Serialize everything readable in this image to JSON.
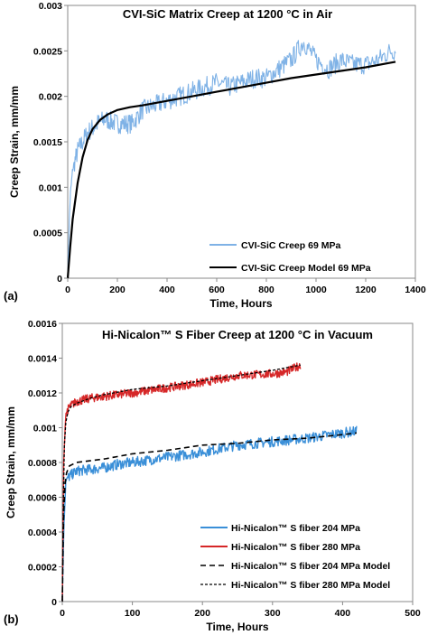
{
  "chart_data": [
    {
      "panel_label": "(a)",
      "type": "line",
      "title": "CVI-SiC Matrix Creep at 1200 °C in Air",
      "xlabel": "Time, Hours",
      "ylabel": "Creep Strain, mm/mm",
      "xlim": [
        0,
        1400
      ],
      "ylim": [
        0,
        0.003
      ],
      "x_ticks": [
        "0",
        "200",
        "400",
        "600",
        "800",
        "1000",
        "1200",
        "1400"
      ],
      "y_ticks": [
        "0",
        "0.0005",
        "0.001",
        "0.0015",
        "0.002",
        "0.0025",
        "0.003"
      ],
      "grid": false,
      "legend_position": "bottom-right",
      "colors": {
        "data": "#7fb2e6",
        "model": "#000000"
      },
      "series": [
        {
          "name": "CVI-SiC Creep 69 MPa",
          "style": "noisy-data",
          "x": [
            0,
            5,
            10,
            20,
            30,
            40,
            60,
            80,
            100,
            120,
            150,
            180,
            200,
            230,
            260,
            300,
            350,
            400,
            450,
            500,
            550,
            600,
            650,
            700,
            750,
            800,
            850,
            900,
            950,
            1000,
            1050,
            1100,
            1150,
            1200,
            1250,
            1300,
            1320
          ],
          "y": [
            0,
            0.0005,
            0.0009,
            0.0012,
            0.0013,
            0.0014,
            0.0015,
            0.0016,
            0.00165,
            0.0017,
            0.00175,
            0.00172,
            0.0017,
            0.0017,
            0.0017,
            0.00185,
            0.0019,
            0.00195,
            0.002,
            0.00205,
            0.0021,
            0.00215,
            0.0021,
            0.00215,
            0.0022,
            0.0022,
            0.0023,
            0.0024,
            0.0026,
            0.0024,
            0.0023,
            0.0024,
            0.00235,
            0.00235,
            0.0024,
            0.0025,
            0.0025
          ]
        },
        {
          "name": "CVI-SiC Creep Model 69 MPa",
          "style": "solid",
          "x": [
            0,
            10,
            20,
            40,
            60,
            80,
            100,
            130,
            160,
            200,
            250,
            300,
            400,
            500,
            600,
            700,
            800,
            900,
            1000,
            1100,
            1200,
            1300,
            1320
          ],
          "y": [
            0,
            0.00035,
            0.00065,
            0.00105,
            0.00133,
            0.00152,
            0.00164,
            0.00174,
            0.0018,
            0.00185,
            0.00188,
            0.0019,
            0.00195,
            0.002,
            0.00205,
            0.0021,
            0.00215,
            0.0022,
            0.00224,
            0.00228,
            0.00232,
            0.00237,
            0.00238
          ]
        }
      ]
    },
    {
      "panel_label": "(b)",
      "type": "line",
      "title": "Hi-Nicalon™ S Fiber Creep at 1200 °C in Vacuum",
      "xlabel": "Time, Hours",
      "ylabel": "Creep Strain, mm/mm",
      "xlim": [
        0,
        500
      ],
      "ylim": [
        0,
        0.0016
      ],
      "x_ticks": [
        "0",
        "100",
        "200",
        "300",
        "400",
        "500"
      ],
      "y_ticks": [
        "0",
        "0.0002",
        "0.0004",
        "0.0006",
        "0.0008",
        "0.001",
        "0.0012",
        "0.0014",
        "0.0016"
      ],
      "grid": false,
      "legend_position": "bottom-right",
      "colors": {
        "s204": "#3a8fd8",
        "s280": "#d62728",
        "model": "#000000"
      },
      "series": [
        {
          "name": "Hi-Nicalon™ S fiber 204 MPa",
          "style": "noisy-data",
          "x": [
            0,
            2,
            5,
            10,
            20,
            40,
            60,
            80,
            100,
            150,
            200,
            250,
            300,
            350,
            400,
            420
          ],
          "y": [
            0,
            0.0004,
            0.0007,
            0.00072,
            0.00075,
            0.00076,
            0.00077,
            0.00079,
            0.0008,
            0.00083,
            0.00086,
            0.0009,
            0.00092,
            0.00094,
            0.00097,
            0.00098
          ]
        },
        {
          "name": "Hi-Nicalon™ S fiber 280 MPa",
          "style": "noisy-data",
          "x": [
            0,
            2,
            5,
            10,
            20,
            40,
            60,
            80,
            100,
            150,
            200,
            250,
            300,
            320,
            340
          ],
          "y": [
            0,
            0.0008,
            0.00108,
            0.00112,
            0.00115,
            0.00117,
            0.00118,
            0.00119,
            0.0012,
            0.00123,
            0.00126,
            0.0013,
            0.00131,
            0.00132,
            0.00136
          ]
        },
        {
          "name": "Hi-Nicalon™ S fiber 204 MPa Model",
          "style": "long-dash",
          "x": [
            0,
            1,
            2,
            4,
            6,
            10,
            20,
            40,
            60,
            100,
            150,
            200,
            250,
            300,
            350,
            400,
            420
          ],
          "y": [
            0,
            0.0003,
            0.00052,
            0.00068,
            0.00074,
            0.00078,
            0.0008,
            0.00081,
            0.00082,
            0.00085,
            0.00087,
            0.0009,
            0.00091,
            0.00093,
            0.00094,
            0.00096,
            0.00097
          ]
        },
        {
          "name": "Hi-Nicalon™ S fiber 280 MPa Model",
          "style": "short-dash",
          "x": [
            0,
            1,
            2,
            3,
            5,
            8,
            12,
            20,
            40,
            60,
            100,
            150,
            200,
            250,
            300,
            340
          ],
          "y": [
            0,
            0.0004,
            0.0007,
            0.0009,
            0.00103,
            0.00109,
            0.00112,
            0.00114,
            0.00117,
            0.00119,
            0.00122,
            0.00124,
            0.00127,
            0.0013,
            0.00133,
            0.00136
          ]
        }
      ]
    }
  ]
}
